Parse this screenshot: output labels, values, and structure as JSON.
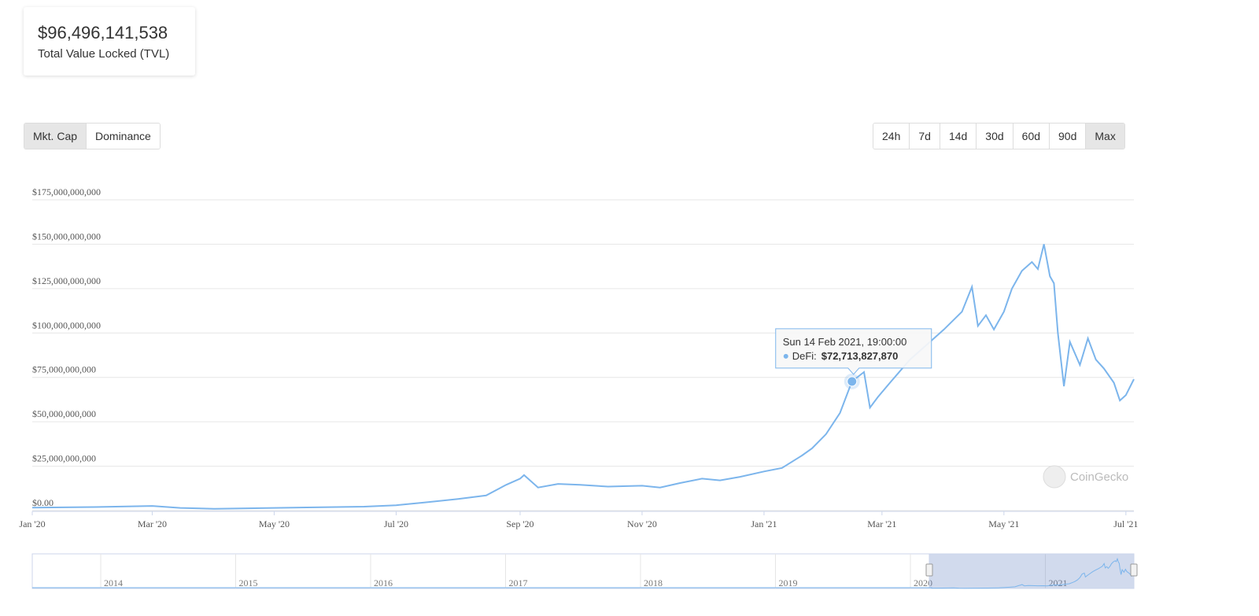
{
  "summary": {
    "value": "$96,496,141,538",
    "label": "Total Value Locked (TVL)"
  },
  "view_buttons": [
    "Mkt. Cap",
    "Dominance"
  ],
  "range_buttons": [
    "24h",
    "7d",
    "14d",
    "30d",
    "60d",
    "90d",
    "Max"
  ],
  "watermark": "CoinGecko",
  "chart_data": {
    "type": "line",
    "x": [
      "2020-01-01",
      "2020-02-01",
      "2020-03-01",
      "2020-03-15",
      "2020-04-01",
      "2020-05-01",
      "2020-06-01",
      "2020-06-15",
      "2020-07-01",
      "2020-07-15",
      "2020-08-01",
      "2020-08-15",
      "2020-08-25",
      "2020-09-01",
      "2020-09-03",
      "2020-09-10",
      "2020-09-20",
      "2020-10-01",
      "2020-10-15",
      "2020-11-01",
      "2020-11-10",
      "2020-11-20",
      "2020-12-01",
      "2020-12-10",
      "2020-12-20",
      "2021-01-01",
      "2021-01-10",
      "2021-01-20",
      "2021-01-25",
      "2021-02-01",
      "2021-02-08",
      "2021-02-14",
      "2021-02-20",
      "2021-02-23",
      "2021-02-27",
      "2021-03-05",
      "2021-03-15",
      "2021-03-25",
      "2021-04-01",
      "2021-04-10",
      "2021-04-15",
      "2021-04-18",
      "2021-04-22",
      "2021-04-26",
      "2021-05-01",
      "2021-05-05",
      "2021-05-10",
      "2021-05-15",
      "2021-05-18",
      "2021-05-21",
      "2021-05-24",
      "2021-05-26",
      "2021-05-28",
      "2021-05-31",
      "2021-06-03",
      "2021-06-08",
      "2021-06-12",
      "2021-06-16",
      "2021-06-20",
      "2021-06-25",
      "2021-06-28",
      "2021-07-01",
      "2021-07-05"
    ],
    "series": [
      {
        "color": "#7cb5ec",
        "values": [
          1700000000,
          2000000000,
          2600000000,
          1500000000,
          1000000000,
          1500000000,
          2000000000,
          2200000000,
          3000000000,
          4500000000,
          6500000000,
          8500000000,
          14500000000,
          18000000000,
          20000000000,
          13000000000,
          15000000000,
          14500000000,
          13500000000,
          14000000000,
          13000000000,
          15500000000,
          18000000000,
          17000000000,
          19000000000,
          22000000000,
          24000000000,
          31000000000,
          35000000000,
          43000000000,
          55000000000,
          72713827870,
          78000000000,
          58000000000,
          64000000000,
          72000000000,
          85000000000,
          95000000000,
          102000000000,
          112000000000,
          126000000000,
          104000000000,
          110000000000,
          102000000000,
          112000000000,
          125000000000,
          135000000000,
          140000000000,
          136000000000,
          150000000000,
          132000000000,
          128000000000,
          100000000000,
          70000000000,
          95000000000,
          82000000000,
          97000000000,
          85000000000,
          80000000000,
          72000000000,
          62000000000,
          65000000000,
          74000000000
        ]
      }
    ],
    "xlim": [
      "2020-01-01",
      "2021-07-05"
    ],
    "xticks": [
      {
        "value": "2020-01-01",
        "label": "Jan '20"
      },
      {
        "value": "2020-03-01",
        "label": "Mar '20"
      },
      {
        "value": "2020-05-01",
        "label": "May '20"
      },
      {
        "value": "2020-07-01",
        "label": "Jul '20"
      },
      {
        "value": "2020-09-01",
        "label": "Sep '20"
      },
      {
        "value": "2020-11-01",
        "label": "Nov '20"
      },
      {
        "value": "2021-01-01",
        "label": "Jan '21"
      },
      {
        "value": "2021-03-01",
        "label": "Mar '21"
      },
      {
        "value": "2021-05-01",
        "label": "May '21"
      },
      {
        "value": "2021-07-01",
        "label": "Jul '21"
      }
    ],
    "ylim": [
      0,
      175000000000
    ],
    "yticks": [
      {
        "value": 0,
        "label": "$0.00"
      },
      {
        "value": 25000000000,
        "label": "$25,000,000,000"
      },
      {
        "value": 50000000000,
        "label": "$50,000,000,000"
      },
      {
        "value": 75000000000,
        "label": "$75,000,000,000"
      },
      {
        "value": 100000000000,
        "label": "$100,000,000,000"
      },
      {
        "value": 125000000000,
        "label": "$125,000,000,000"
      },
      {
        "value": 150000000000,
        "label": "$150,000,000,000"
      },
      {
        "value": 175000000000,
        "label": "$175,000,000,000"
      }
    ],
    "grid": true,
    "tooltip": {
      "date": "Sun 14 Feb 2021, 19:00:00",
      "series_label": "DeFi:",
      "value_label": "$72,713,827,870",
      "index": 31
    },
    "navigator_years": [
      "2014",
      "2015",
      "2016",
      "2017",
      "2018",
      "2019",
      "2020",
      "2021"
    ]
  }
}
